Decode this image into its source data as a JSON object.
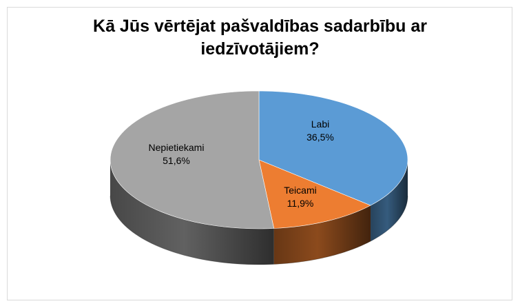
{
  "chart_data": {
    "type": "pie",
    "title_lines": [
      "Kā Jūs vērtējat pašvaldības sadarbību ar",
      "iedzīvotājiem?"
    ],
    "slices": [
      {
        "label": "Labi",
        "value": 36.5,
        "value_label": "36,5%",
        "color": "#5b9bd5"
      },
      {
        "label": "Teicami",
        "value": 11.9,
        "value_label": "11,9%",
        "color": "#ed7d31"
      },
      {
        "label": "Nepietiekami",
        "value": 51.6,
        "value_label": "51,6%",
        "color": "#a5a5a5"
      }
    ],
    "style": "3d",
    "legend": "none"
  }
}
